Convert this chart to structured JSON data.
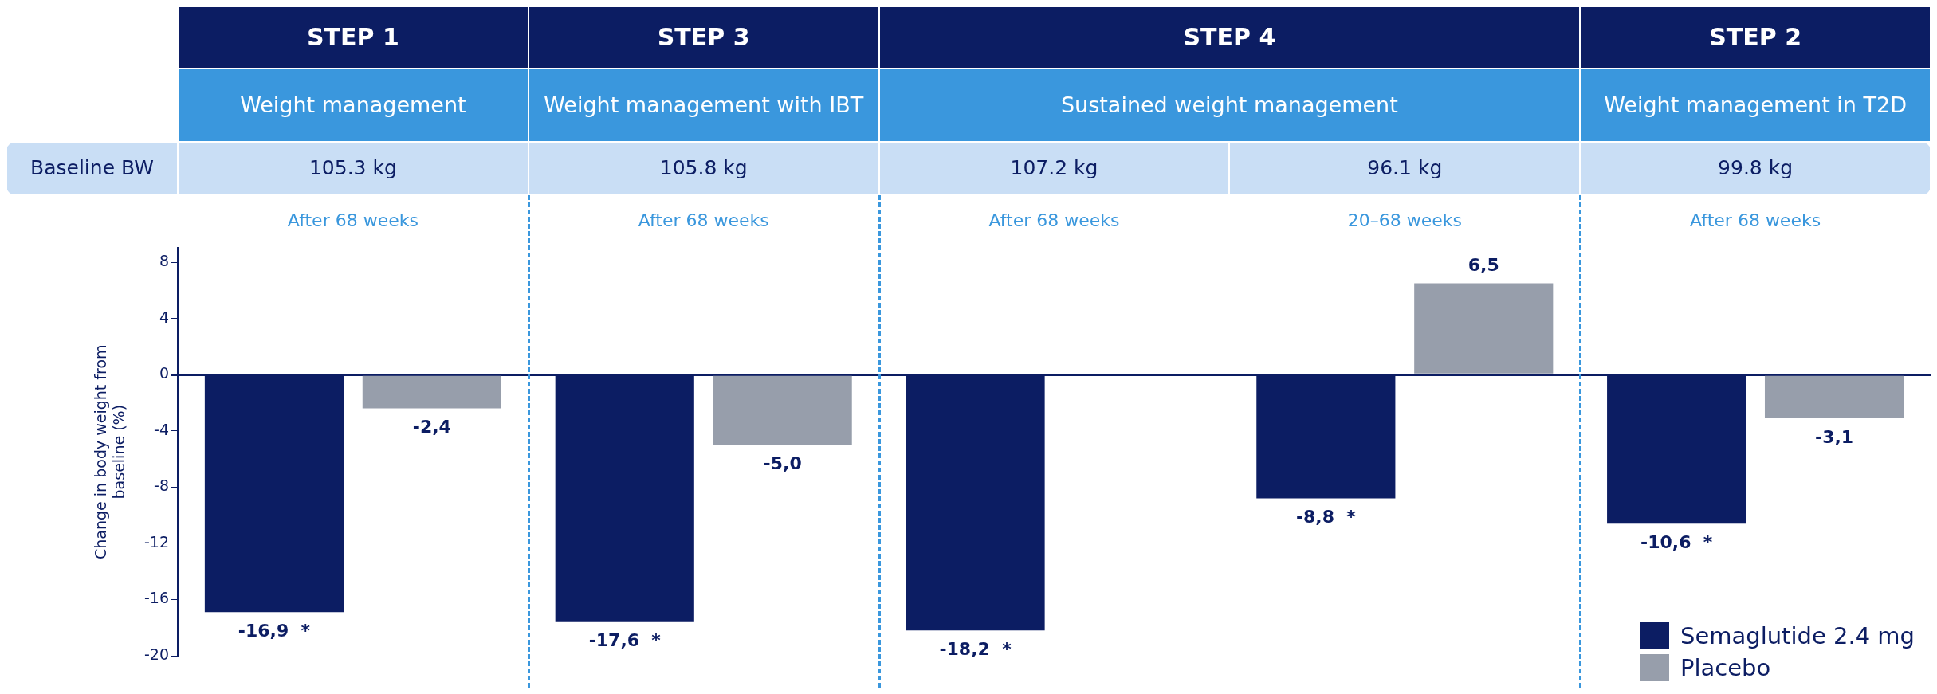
{
  "chart_data": {
    "type": "bar",
    "ylabel": "Change in body weight from baseline (%)",
    "categories": [
      "After 68 weeks",
      "After 68 weeks",
      "After 68 weeks",
      "20–68 weeks",
      "After 68 weeks"
    ],
    "series": [
      {
        "name": "Semaglutide 2.4 mg",
        "color": "#0c1d63",
        "values": [
          -16.9,
          -17.6,
          -18.2,
          -8.8,
          -10.6
        ],
        "value_labels": [
          "-16,9  *",
          "-17,6  *",
          "-18,2  *",
          "-8,8  *",
          "-10,6  *"
        ]
      },
      {
        "name": "Placebo",
        "color": "#979eab",
        "values": [
          -2.4,
          -5.0,
          null,
          6.5,
          -3.1
        ],
        "value_labels": [
          "-2,4",
          "-5,0",
          null,
          "6,5",
          "-3,1"
        ]
      }
    ],
    "ylim": [
      -20,
      9
    ],
    "yticks": [
      -20,
      -16,
      -12,
      -8,
      -4,
      0,
      4,
      8
    ],
    "grid": false,
    "legend": "bottom right",
    "annotations": [
      "STEP 1",
      "STEP 3",
      "STEP 4",
      "STEP 2",
      "Weight management",
      "Weight management with IBT",
      "Sustained weight management",
      "Weight management in T2D",
      "Baseline BW",
      "105.3 kg",
      "105.8 kg",
      "107.2 kg",
      "96.1 kg",
      "99.8 kg"
    ]
  }
}
